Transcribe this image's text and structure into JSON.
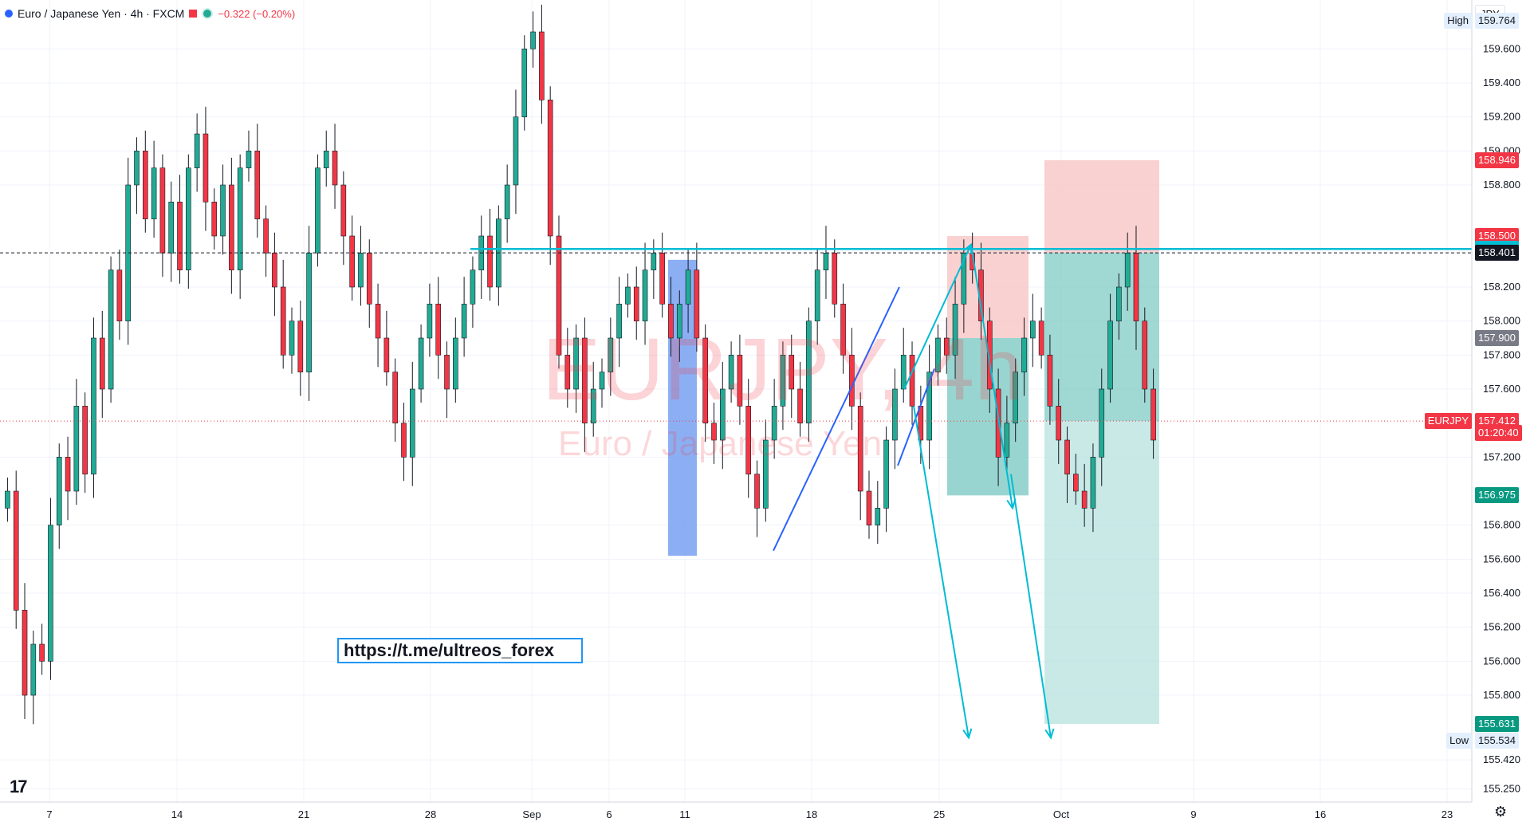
{
  "header": {
    "symbol_title": "Euro / Japanese Yen · 4h · FXCM",
    "change": "−0.322 (−0.20%)"
  },
  "currency": "JPY",
  "watermark": {
    "big": "EURJPY, 4h",
    "small": "Euro / Japanese Yen"
  },
  "link_text": "https://t.me/ultreos_forex",
  "colors": {
    "up": "#22ab94",
    "down": "#f23645",
    "level": "#00bcd4",
    "blue_zone": "#2962ff",
    "stop_zone": "#f7c6c5",
    "target_zone": "#b2dfdb",
    "target_zone_dark": "#80cbc4"
  },
  "chart_data": {
    "type": "candlestick",
    "y_ticks": [
      "159.600",
      "159.400",
      "159.200",
      "159.000",
      "158.800",
      "158.200",
      "158.000",
      "157.800",
      "157.600",
      "157.200",
      "156.800",
      "156.600",
      "156.400",
      "156.200",
      "156.000",
      "155.800",
      "155.420",
      "155.250"
    ],
    "x_ticks": [
      "7",
      "14",
      "21",
      "28",
      "Sep",
      "6",
      "11",
      "18",
      "25",
      "Oct",
      "9",
      "16",
      "23"
    ],
    "price_labels": [
      {
        "label": "High",
        "value": "159.764",
        "kind": "plain"
      },
      {
        "label": "",
        "value": "158.946",
        "kind": "red"
      },
      {
        "label": "",
        "value": "158.500",
        "kind": "red"
      },
      {
        "label": "",
        "value": "158.424",
        "kind": "cyan"
      },
      {
        "label": "",
        "value": "158.401",
        "kind": "dark"
      },
      {
        "label": "",
        "value": "157.900",
        "kind": "gray"
      },
      {
        "label": "EURJPY",
        "value": "157.412",
        "kind": "red"
      },
      {
        "label": "",
        "value": "01:20:40",
        "kind": "red"
      },
      {
        "label": "",
        "value": "156.975",
        "kind": "teal"
      },
      {
        "label": "",
        "value": "155.631",
        "kind": "teal"
      },
      {
        "label": "Low",
        "value": "155.534",
        "kind": "plain"
      }
    ],
    "ylim": [
      155.2,
      159.85
    ],
    "current_price": 157.412,
    "resistance": 158.424,
    "last_close_line": 158.401,
    "path": [
      157.0,
      156.3,
      155.8,
      156.1,
      156.0,
      156.8,
      157.2,
      157.0,
      157.5,
      157.1,
      157.9,
      157.6,
      158.3,
      158.0,
      158.8,
      159.0,
      158.6,
      158.9,
      158.4,
      158.7,
      158.3,
      158.9,
      159.1,
      158.7,
      158.5,
      158.8,
      158.3,
      158.9,
      159.0,
      158.6,
      158.4,
      158.2,
      157.8,
      158.0,
      157.7,
      158.4,
      158.9,
      159.0,
      158.8,
      158.5,
      158.2,
      158.4,
      158.1,
      157.9,
      157.7,
      157.4,
      157.2,
      157.6,
      157.9,
      158.1,
      157.8,
      157.6,
      157.9,
      158.1,
      158.3,
      158.5,
      158.2,
      158.6,
      158.8,
      159.2,
      159.6,
      159.7,
      159.3,
      158.5,
      157.8,
      157.6,
      157.9,
      157.4,
      157.6,
      157.7,
      157.9,
      158.1,
      158.2,
      158.0,
      158.3,
      158.4,
      158.1,
      157.9,
      158.1,
      158.3,
      157.9,
      157.4,
      157.3,
      157.6,
      157.8,
      157.5,
      157.1,
      156.9,
      157.3,
      157.5,
      157.8,
      157.6,
      157.4,
      158.0,
      158.3,
      158.4,
      158.1,
      157.8,
      157.5,
      157.0,
      156.8,
      156.9,
      157.3,
      157.6,
      157.8,
      157.5,
      157.3,
      157.7,
      157.9,
      157.8,
      158.1,
      158.4,
      158.3,
      158.0,
      157.6,
      157.2,
      157.4,
      157.7,
      157.9,
      158.0,
      157.8,
      157.5,
      157.3,
      157.1,
      157.0,
      156.9,
      157.2,
      157.6,
      158.0,
      158.2,
      158.4,
      158.0,
      157.6,
      157.3
    ]
  }
}
